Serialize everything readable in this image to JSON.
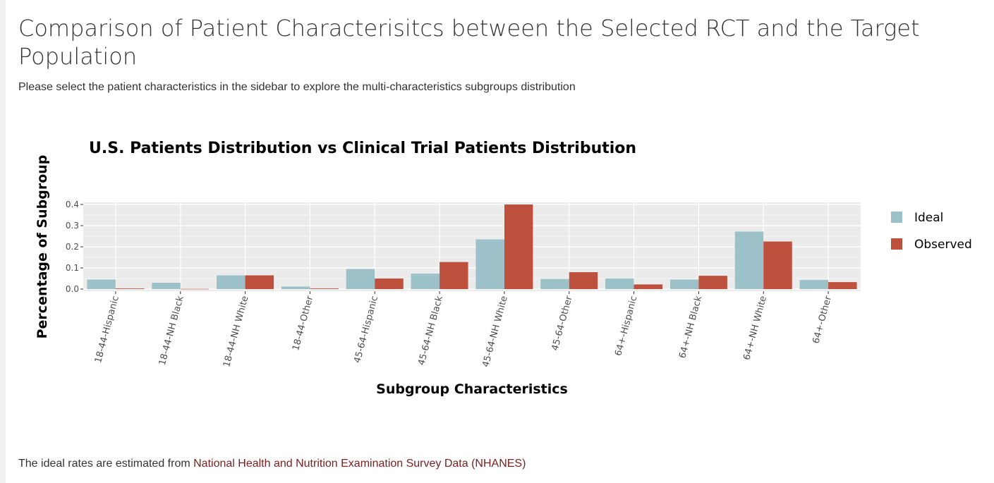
{
  "page": {
    "title": "Comparison of Patient Characterisitcs between the Selected RCT and the Target Population",
    "subtitle": "Please select the patient characteristics in the sidebar to explore the multi-characteristics subgroups distribution",
    "footer_text": "The ideal rates are estimated from ",
    "footer_link": "National Health and Nutrition Examination Survey Data (NHANES)"
  },
  "colors": {
    "ideal": "#9cc1c8",
    "observed": "#bd513d",
    "panel": "#ebebeb",
    "grid": "#ffffff",
    "link": "#7a1f1f"
  },
  "chart_data": {
    "type": "bar",
    "title": "U.S. Patients Distribution vs Clinical Trial Patients Distribution",
    "xlabel": "Subgroup Characteristics",
    "ylabel": "Percentage of Subgroup",
    "ylim": [
      -0.01,
      0.41
    ],
    "yticks": [
      0.0,
      0.1,
      0.2,
      0.3,
      0.4
    ],
    "ytick_labels": [
      "0.0",
      "0.1",
      "0.2",
      "0.3",
      "0.4"
    ],
    "grid": true,
    "legend_position": "right",
    "categories": [
      "18-44-Hispanic",
      "18-44-NH Black",
      "18-44-NH White",
      "18-44-Other",
      "45-64-Hispanic",
      "45-64-NH Black",
      "45-64-NH White",
      "45-64-Other",
      "64+-Hispanic",
      "64+-NH Black",
      "64+-NH White",
      "64+-Other"
    ],
    "series": [
      {
        "name": "Ideal",
        "values": [
          0.045,
          0.03,
          0.065,
          0.012,
          0.095,
          0.073,
          0.235,
          0.048,
          0.05,
          0.045,
          0.272,
          0.043
        ]
      },
      {
        "name": "Observed",
        "values": [
          0.003,
          0.001,
          0.065,
          0.003,
          0.05,
          0.128,
          0.4,
          0.08,
          0.022,
          0.063,
          0.225,
          0.033
        ]
      }
    ]
  }
}
